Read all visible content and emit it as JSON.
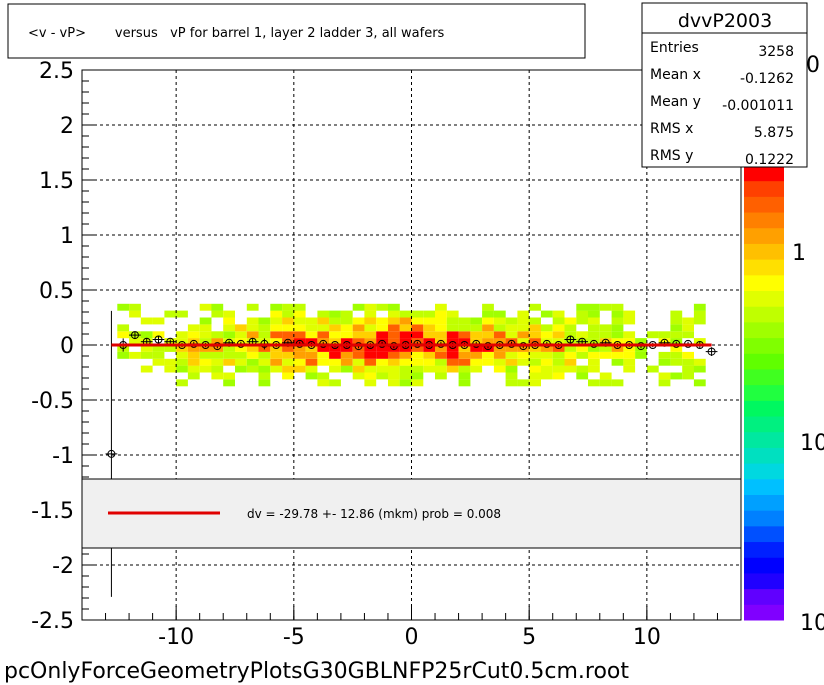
{
  "chart_data": {
    "type": "heatmap",
    "title": "<v - vP>       versus   vP for barrel 1, layer 2 ladder 3, all wafers",
    "footer": "pcOnlyForceGeometryPlotsG30GBLNFP25rCut0.5cm.root",
    "xlim": [
      -14,
      14
    ],
    "ylim": [
      -2.5,
      2.5
    ],
    "x_ticks": [
      "-10",
      "-5",
      "0",
      "5",
      "10"
    ],
    "x_tick_values": [
      -10,
      -5,
      0,
      5,
      10
    ],
    "y_ticks": [
      "2.5",
      "2",
      "1.5",
      "1",
      "0.5",
      "0",
      "-0.5",
      "-1",
      "-1.5",
      "-2",
      "-2.5"
    ],
    "y_tick_values": [
      2.5,
      2,
      1.5,
      1,
      0.5,
      0,
      -0.5,
      -1,
      -1.5,
      -2,
      -2.5
    ],
    "grid": true,
    "stats": {
      "name": "dvvP2003",
      "rows": [
        {
          "label": "Entries",
          "value": "3258"
        },
        {
          "label": "Mean x",
          "value": "-0.1262"
        },
        {
          "label": "Mean y",
          "value": "-0.001011"
        },
        {
          "label": "RMS x",
          "value": "5.875"
        },
        {
          "label": "RMS y",
          "value": "0.1222"
        }
      ]
    },
    "legend": {
      "text": "dv =  -29.78 +- 12.86 (mkm) prob = 0.008",
      "line_color": "#e00000"
    },
    "colorbar": {
      "labels": [
        "0",
        "1",
        "10",
        "10"
      ],
      "colors": [
        "#8000ff",
        "#6000ff",
        "#2000ff",
        "#0000ff",
        "#0020ff",
        "#0050ff",
        "#0080ff",
        "#00a0ff",
        "#00c0ff",
        "#00d8e0",
        "#00e0c0",
        "#00e8a0",
        "#00f080",
        "#00f860",
        "#20ff40",
        "#40ff20",
        "#60ff00",
        "#80ff00",
        "#a0ff00",
        "#c0ff00",
        "#e0ff00",
        "#ffff00",
        "#ffe000",
        "#ffc000",
        "#ffa000",
        "#ff8000",
        "#ff6000",
        "#ff4000",
        "#ff0000"
      ]
    },
    "profile_points": {
      "x": [
        -12.75,
        -12.25,
        -11.75,
        -11.25,
        -10.75,
        -10.25,
        -9.75,
        -9.25,
        -8.75,
        -8.25,
        -7.75,
        -7.25,
        -6.75,
        -6.25,
        -5.75,
        -5.25,
        -4.75,
        -4.25,
        -3.75,
        -3.25,
        -2.75,
        -2.25,
        -1.75,
        -1.25,
        -0.75,
        -0.25,
        0.25,
        0.75,
        1.25,
        1.75,
        2.25,
        2.75,
        3.25,
        3.75,
        4.25,
        4.75,
        5.25,
        5.75,
        6.25,
        6.75,
        7.25,
        7.75,
        8.25,
        8.75,
        9.25,
        9.75,
        10.25,
        10.75,
        11.25,
        11.75,
        12.25,
        12.75
      ],
      "y": [
        -0.99,
        0.0,
        0.09,
        0.03,
        0.05,
        0.03,
        0.0,
        0.01,
        0.0,
        -0.01,
        0.02,
        0.01,
        0.03,
        0.01,
        0.0,
        0.02,
        0.01,
        0.0,
        0.01,
        0.0,
        0.0,
        -0.01,
        0.0,
        0.01,
        -0.01,
        0.0,
        0.01,
        0.0,
        0.01,
        0.0,
        0.0,
        0.01,
        -0.01,
        0.0,
        0.01,
        -0.01,
        0.0,
        0.01,
        0.0,
        0.05,
        0.03,
        0.01,
        0.02,
        0.0,
        0.0,
        -0.01,
        0.0,
        0.02,
        0.01,
        0.01,
        0.0,
        -0.06
      ],
      "err": [
        1.3,
        0.06,
        0.03,
        0.03,
        0.03,
        0.02,
        0.02,
        0.02,
        0.02,
        0.02,
        0.02,
        0.02,
        0.03,
        0.05,
        0.02,
        0.02,
        0.02,
        0.02,
        0.02,
        0.02,
        0.02,
        0.02,
        0.02,
        0.02,
        0.02,
        0.02,
        0.02,
        0.02,
        0.02,
        0.02,
        0.02,
        0.02,
        0.02,
        0.02,
        0.02,
        0.02,
        0.02,
        0.02,
        0.02,
        0.03,
        0.02,
        0.02,
        0.02,
        0.02,
        0.02,
        0.02,
        0.02,
        0.02,
        0.02,
        0.02,
        0.03,
        0.04
      ]
    },
    "fit_line": {
      "x": [
        -12.75,
        12.75
      ],
      "y": [
        0.0,
        0.0
      ],
      "color": "#e00000"
    }
  }
}
